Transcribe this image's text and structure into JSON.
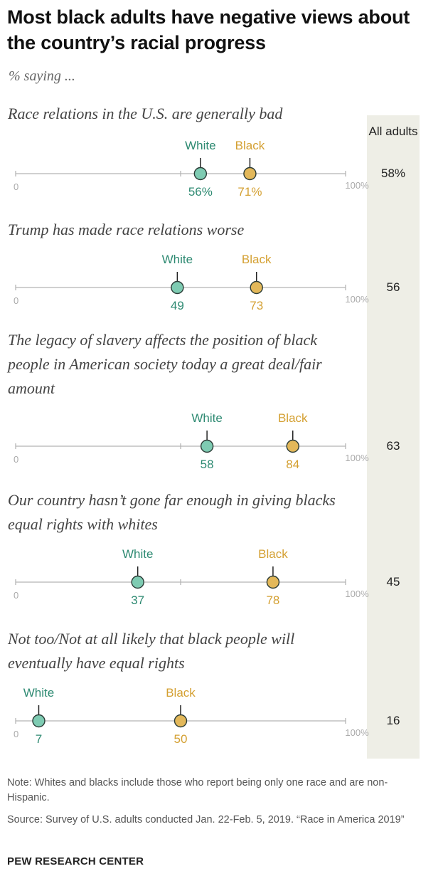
{
  "title": "Most black adults have negative views about the country’s racial progress",
  "subtitle": "% saying ...",
  "column_header": "All adults",
  "note": "Note: Whites and blacks include those who report being only one race and are non-Hispanic.",
  "source": "Source: Survey of U.S. adults conducted Jan. 22-Feb. 5, 2019. “Race in America 2019”",
  "brand": "PEW RESEARCH CENTER",
  "colors": {
    "white": "#7ecbb2",
    "white_text": "#2e8a72",
    "black": "#e3b85a",
    "black_text": "#d4a032",
    "axis": "#b5b5b5",
    "band": "#eeeee6"
  },
  "chart_data": {
    "type": "dot-plot",
    "axis": {
      "min": 0,
      "max": 100,
      "min_label": "0",
      "max_label": "100%"
    },
    "series": [
      {
        "name": "White"
      },
      {
        "name": "Black"
      }
    ],
    "rows": [
      {
        "label": "Race relations in the U.S. are generally bad",
        "white": 56,
        "black": 71,
        "white_label": "56%",
        "black_label": "71%",
        "all_adults": "58%"
      },
      {
        "label": "Trump has made race relations worse",
        "white": 49,
        "black": 73,
        "white_label": "49",
        "black_label": "73",
        "all_adults": "56"
      },
      {
        "label": "The legacy of slavery affects the position of black people in American society today a great deal/fair amount",
        "white": 58,
        "black": 84,
        "white_label": "58",
        "black_label": "84",
        "all_adults": "63"
      },
      {
        "label": "Our country hasn’t gone far enough in giving blacks equal rights with whites",
        "white": 37,
        "black": 78,
        "white_label": "37",
        "black_label": "78",
        "all_adults": "45"
      },
      {
        "label": "Not too/Not at all likely that black people will eventually have equal rights",
        "white": 7,
        "black": 50,
        "white_label": "7",
        "black_label": "50",
        "all_adults": "16"
      }
    ]
  }
}
